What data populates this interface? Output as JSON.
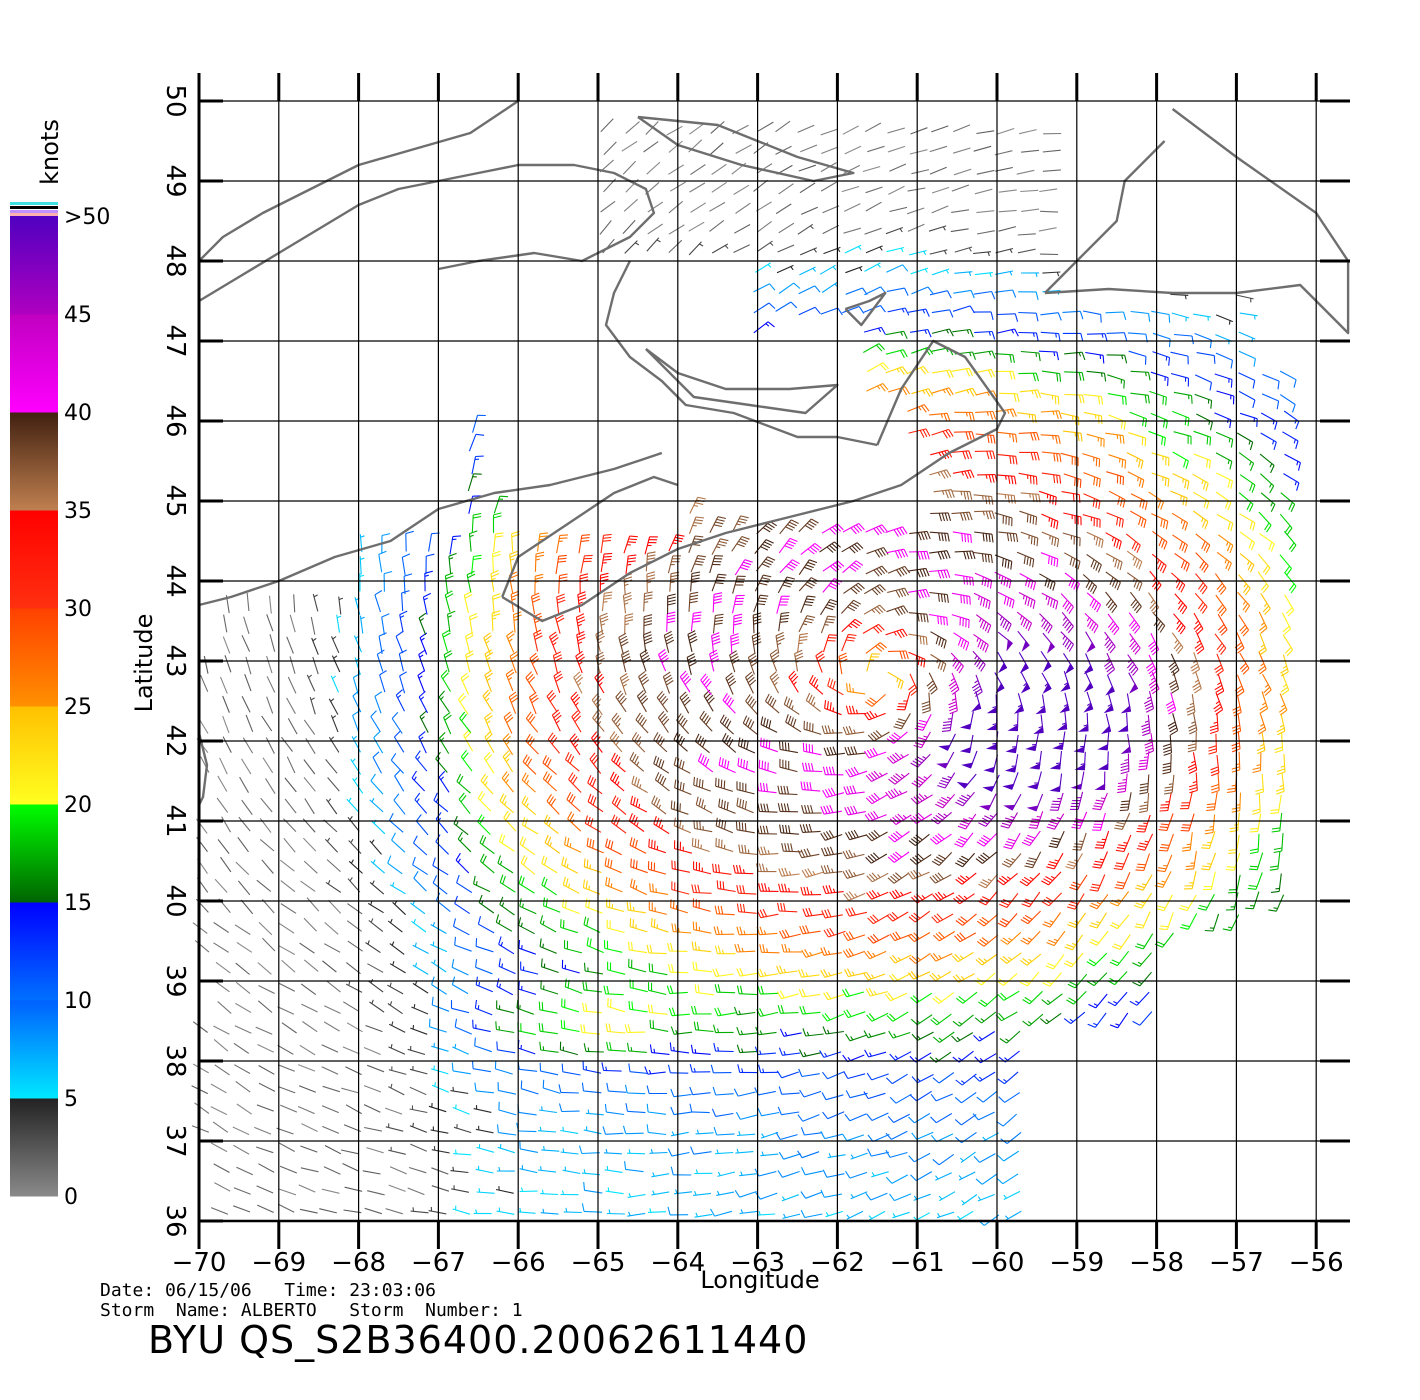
{
  "chart_data": {
    "type": "wind-barb-map",
    "xlabel": "Longitude",
    "ylabel": "Latitude",
    "xlim": [
      -70,
      -55.5
    ],
    "ylim": [
      36,
      50
    ],
    "x_ticks": [
      "−70",
      "−69",
      "−68",
      "−67",
      "−66",
      "−65",
      "−64",
      "−63",
      "−62",
      "−61",
      "−60",
      "−59",
      "−58",
      "−57",
      "−56"
    ],
    "y_ticks": [
      "36",
      "37",
      "38",
      "39",
      "40",
      "41",
      "42",
      "43",
      "44",
      "45",
      "46",
      "47",
      "48",
      "49",
      "50"
    ],
    "grid": true,
    "storm_center": {
      "lon": -61.5,
      "lat": 42.8
    },
    "max_wind_center": {
      "lon": -59.4,
      "lat": 42.3
    },
    "colorbar": {
      "title": "knots",
      "labels": [
        "0",
        "5",
        "10",
        "15",
        "20",
        "25",
        "30",
        "35",
        "40",
        "45",
        ">50"
      ],
      "bands": [
        {
          "from": 0,
          "to": 5,
          "colors": [
            "#8a8a8a",
            "#222222"
          ]
        },
        {
          "from": 5,
          "to": 10,
          "colors": [
            "#00e8ff",
            "#0060ff"
          ]
        },
        {
          "from": 10,
          "to": 15,
          "colors": [
            "#0070ff",
            "#0000ff"
          ]
        },
        {
          "from": 15,
          "to": 20,
          "colors": [
            "#006400",
            "#00ff00"
          ]
        },
        {
          "from": 20,
          "to": 25,
          "colors": [
            "#ffff20",
            "#ffc000"
          ]
        },
        {
          "from": 25,
          "to": 30,
          "colors": [
            "#ff9000",
            "#ff4000"
          ]
        },
        {
          "from": 30,
          "to": 35,
          "colors": [
            "#ff3010",
            "#ff0000"
          ]
        },
        {
          "from": 35,
          "to": 40,
          "colors": [
            "#c08050",
            "#402010"
          ]
        },
        {
          "from": 40,
          "to": 45,
          "colors": [
            "#ff00ff",
            "#c000c0"
          ]
        },
        {
          "from": 45,
          "to": 50,
          "colors": [
            "#b000c0",
            "#5000c0"
          ]
        }
      ]
    }
  },
  "info": {
    "date_line": "Date: 06/15/06   Time: 23:03:06",
    "storm_line": "Storm  Name: ALBERTO   Storm  Number: 1"
  },
  "title": "BYU  QS_S2B36400.20062611440"
}
